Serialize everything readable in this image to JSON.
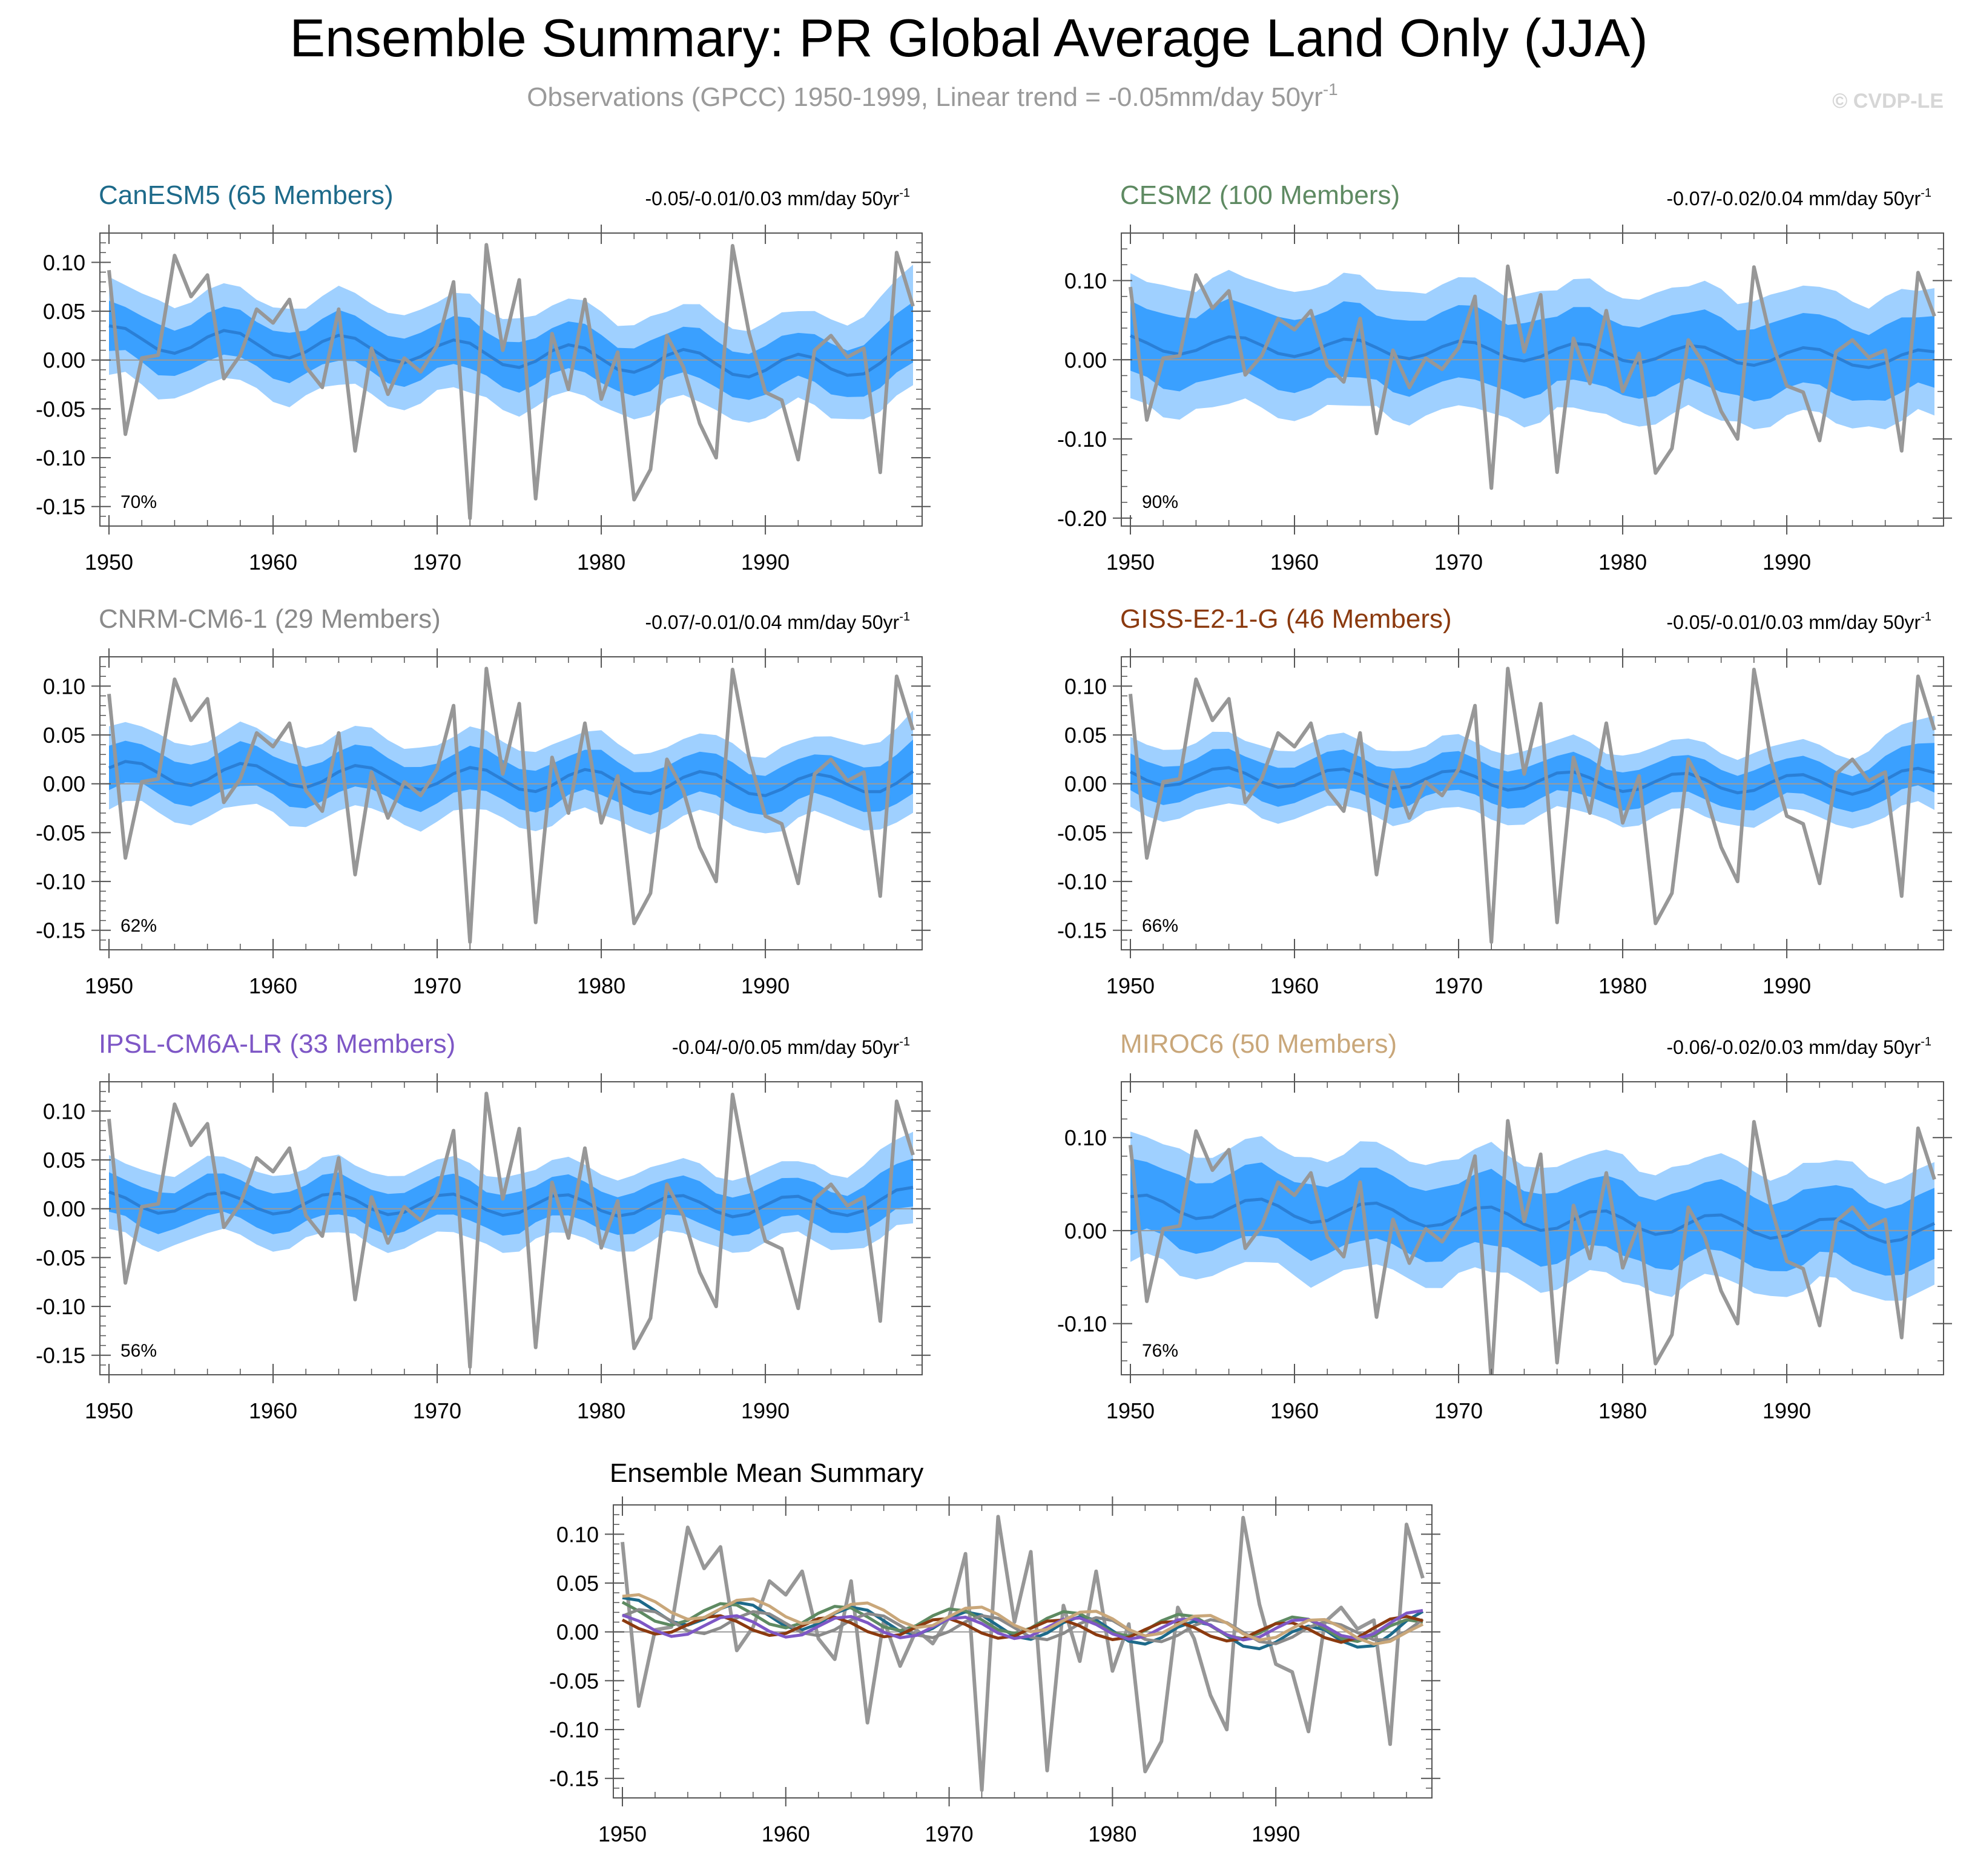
{
  "header": {
    "title": "Ensemble Summary: PR Global Average Land Only (JJA)",
    "subtitle_main": "Observations (GPCC) 1950-1999, Linear trend = -0.05mm/day 50yr",
    "subtitle_sup": "-1",
    "watermark": "© CVDP-LE"
  },
  "colors": {
    "outer_band": "#9fd0ff",
    "inner_band": "#3aa0ff",
    "ensemble_mean_line": "#2a7fd6",
    "observations_line": "#979797",
    "zero_line": "#9a9a9a",
    "axis": "#555555"
  },
  "chart_data": [
    {
      "type": "line",
      "panel": "CanESM5",
      "title": "CanESM5 (65 Members)",
      "title_color": "#1d6a8a",
      "trend_text": "-0.05/-0.01/0.03 mm/day 50yr",
      "trend_sup": "-1",
      "percent_label": "70%",
      "ylim": [
        -0.17,
        0.13
      ],
      "yticks": [
        0.1,
        0.05,
        0.0,
        -0.05,
        -0.1,
        -0.15
      ],
      "ytick_labels": [
        "0.10",
        "0.05",
        "0.00",
        "-0.05",
        "-0.10",
        "-0.15"
      ],
      "minor_step": 0.01,
      "xticks": [
        1950,
        1960,
        1970,
        1980,
        1990
      ],
      "xtick_labels": [
        "1950",
        "1960",
        "1970",
        "1980",
        "1990"
      ],
      "xlim": [
        1950,
        1999
      ],
      "mean_base": 0.005,
      "mean_slope": -0.0007,
      "mean_amp": 0.013,
      "mean_phase": 1.3,
      "inner_width": 0.048,
      "outer_width": 0.095,
      "end_boost": [
        0.03,
        0.02
      ]
    },
    {
      "type": "line",
      "panel": "CESM2",
      "title": "CESM2 (100 Members)",
      "title_color": "#5e8a62",
      "trend_text": "-0.07/-0.02/0.04 mm/day 50yr",
      "trend_sup": "-1",
      "percent_label": "90%",
      "ylim": [
        -0.21,
        0.16
      ],
      "yticks": [
        0.1,
        0.0,
        -0.1,
        -0.2
      ],
      "ytick_labels": [
        "0.10",
        "0.00",
        "-0.10",
        "-0.20"
      ],
      "minor_step": 0.02,
      "xticks": [
        1950,
        1960,
        1970,
        1980,
        1990
      ],
      "xtick_labels": [
        "1950",
        "1960",
        "1970",
        "1980",
        "1990"
      ],
      "xlim": [
        1950,
        1999
      ],
      "mean_base": 0.01,
      "mean_slope": -0.0004,
      "mean_amp": 0.012,
      "mean_phase": 2.1,
      "inner_width": 0.09,
      "outer_width": 0.16,
      "end_boost": [
        0.0,
        0.0
      ]
    },
    {
      "type": "line",
      "panel": "CNRM-CM6-1",
      "title": "CNRM-CM6-1 (29 Members)",
      "title_color": "#8a8a8a",
      "trend_text": "-0.07/-0.01/0.04 mm/day 50yr",
      "trend_sup": "-1",
      "percent_label": "62%",
      "ylim": [
        -0.17,
        0.13
      ],
      "yticks": [
        0.1,
        0.05,
        0.0,
        -0.05,
        -0.1,
        -0.15
      ],
      "ytick_labels": [
        "0.10",
        "0.05",
        "0.00",
        "-0.05",
        "-0.10",
        "-0.15"
      ],
      "minor_step": 0.01,
      "xticks": [
        1950,
        1960,
        1970,
        1980,
        1990
      ],
      "xtick_labels": [
        "1950",
        "1960",
        "1970",
        "1980",
        "1990"
      ],
      "xlim": [
        1950,
        1999
      ],
      "mean_base": 0.004,
      "mean_slope": -0.0003,
      "mean_amp": 0.012,
      "mean_phase": 0.4,
      "inner_width": 0.042,
      "outer_width": 0.08,
      "end_boost": [
        0.02,
        0.01
      ]
    },
    {
      "type": "line",
      "panel": "GISS-E2-1-G",
      "title": "GISS-E2-1-G (46 Members)",
      "title_color": "#8b3a0f",
      "trend_text": "-0.05/-0.01/0.03 mm/day 50yr",
      "trend_sup": "-1",
      "percent_label": "66%",
      "ylim": [
        -0.17,
        0.13
      ],
      "yticks": [
        0.1,
        0.05,
        0.0,
        -0.05,
        -0.1,
        -0.15
      ],
      "ytick_labels": [
        "0.10",
        "0.05",
        "0.00",
        "-0.05",
        "-0.10",
        "-0.15"
      ],
      "minor_step": 0.01,
      "xticks": [
        1950,
        1960,
        1970,
        1980,
        1990
      ],
      "xtick_labels": [
        "1950",
        "1960",
        "1970",
        "1980",
        "1990"
      ],
      "xlim": [
        1950,
        1999
      ],
      "mean_base": 0.003,
      "mean_slope": -0.0002,
      "mean_amp": 0.01,
      "mean_phase": 2.7,
      "inner_width": 0.038,
      "outer_width": 0.072,
      "end_boost": [
        0.02,
        0.01
      ]
    },
    {
      "type": "line",
      "panel": "IPSL-CM6A-LR",
      "title": "IPSL-CM6A-LR (33 Members)",
      "title_color": "#7e57c6",
      "trend_text": "-0.04/-0/0.05 mm/day 50yr",
      "trend_sup": "-1",
      "percent_label": "56%",
      "ylim": [
        -0.17,
        0.13
      ],
      "yticks": [
        0.1,
        0.05,
        0.0,
        -0.05,
        -0.1,
        -0.15
      ],
      "ytick_labels": [
        "0.10",
        "0.05",
        "0.00",
        "-0.05",
        "-0.10",
        "-0.15"
      ],
      "minor_step": 0.01,
      "xticks": [
        1950,
        1960,
        1970,
        1980,
        1990
      ],
      "xtick_labels": [
        "1950",
        "1960",
        "1970",
        "1980",
        "1990"
      ],
      "xlim": [
        1950,
        1999
      ],
      "mean_base": 0.004,
      "mean_slope": -0.0001,
      "mean_amp": 0.011,
      "mean_phase": 1.8,
      "inner_width": 0.04,
      "outer_width": 0.075,
      "end_boost": [
        0.02,
        0.01
      ]
    },
    {
      "type": "line",
      "panel": "MIROC6",
      "title": "MIROC6 (50 Members)",
      "title_color": "#c9a77a",
      "trend_text": "-0.06/-0.02/0.03 mm/day 50yr",
      "trend_sup": "-1",
      "percent_label": "76%",
      "ylim": [
        -0.155,
        0.16
      ],
      "yticks": [
        0.1,
        0.0,
        -0.1
      ],
      "ytick_labels": [
        "0.10",
        "0.00",
        "-0.10"
      ],
      "minor_step": 0.02,
      "xticks": [
        1950,
        1960,
        1970,
        1980,
        1990
      ],
      "xtick_labels": [
        "1950",
        "1960",
        "1970",
        "1980",
        "1990"
      ],
      "xlim": [
        1950,
        1999
      ],
      "mean_base": 0.012,
      "mean_slope": -0.0006,
      "mean_amp": 0.012,
      "mean_phase": 0.9,
      "inner_width": 0.075,
      "outer_width": 0.13,
      "end_boost": [
        0.0,
        0.0
      ]
    }
  ],
  "summary_chart": {
    "type": "line",
    "title": "Ensemble Mean Summary",
    "ylim": [
      -0.17,
      0.13
    ],
    "yticks": [
      0.1,
      0.05,
      0.0,
      -0.05,
      -0.1,
      -0.15
    ],
    "ytick_labels": [
      "0.10",
      "0.05",
      "0.00",
      "-0.05",
      "-0.10",
      "-0.15"
    ],
    "minor_step": 0.01,
    "xticks": [
      1950,
      1960,
      1970,
      1980,
      1990
    ],
    "xtick_labels": [
      "1950",
      "1960",
      "1970",
      "1980",
      "1990"
    ],
    "xlim": [
      1950,
      1999
    ]
  },
  "observations": {
    "name": "GPCC",
    "years": [
      1950,
      1951,
      1952,
      1953,
      1954,
      1955,
      1956,
      1957,
      1958,
      1959,
      1960,
      1961,
      1962,
      1963,
      1964,
      1965,
      1966,
      1967,
      1968,
      1969,
      1970,
      1971,
      1972,
      1973,
      1974,
      1975,
      1976,
      1977,
      1978,
      1979,
      1980,
      1981,
      1982,
      1983,
      1984,
      1985,
      1986,
      1987,
      1988,
      1989,
      1990,
      1991,
      1992,
      1993,
      1994,
      1995,
      1996,
      1997,
      1998,
      1999
    ],
    "values": [
      0.092,
      -0.076,
      0.002,
      0.005,
      0.107,
      0.065,
      0.087,
      -0.019,
      0.005,
      0.052,
      0.038,
      0.062,
      -0.007,
      -0.028,
      0.052,
      -0.093,
      0.012,
      -0.035,
      0.002,
      -0.012,
      0.015,
      0.08,
      -0.162,
      0.118,
      0.01,
      0.082,
      -0.142,
      0.027,
      -0.03,
      0.062,
      -0.04,
      0.008,
      -0.143,
      -0.112,
      0.025,
      -0.007,
      -0.065,
      -0.1,
      0.117,
      0.028,
      -0.033,
      -0.041,
      -0.102,
      0.01,
      0.025,
      0.003,
      0.012,
      -0.115,
      0.11,
      0.055
    ]
  }
}
